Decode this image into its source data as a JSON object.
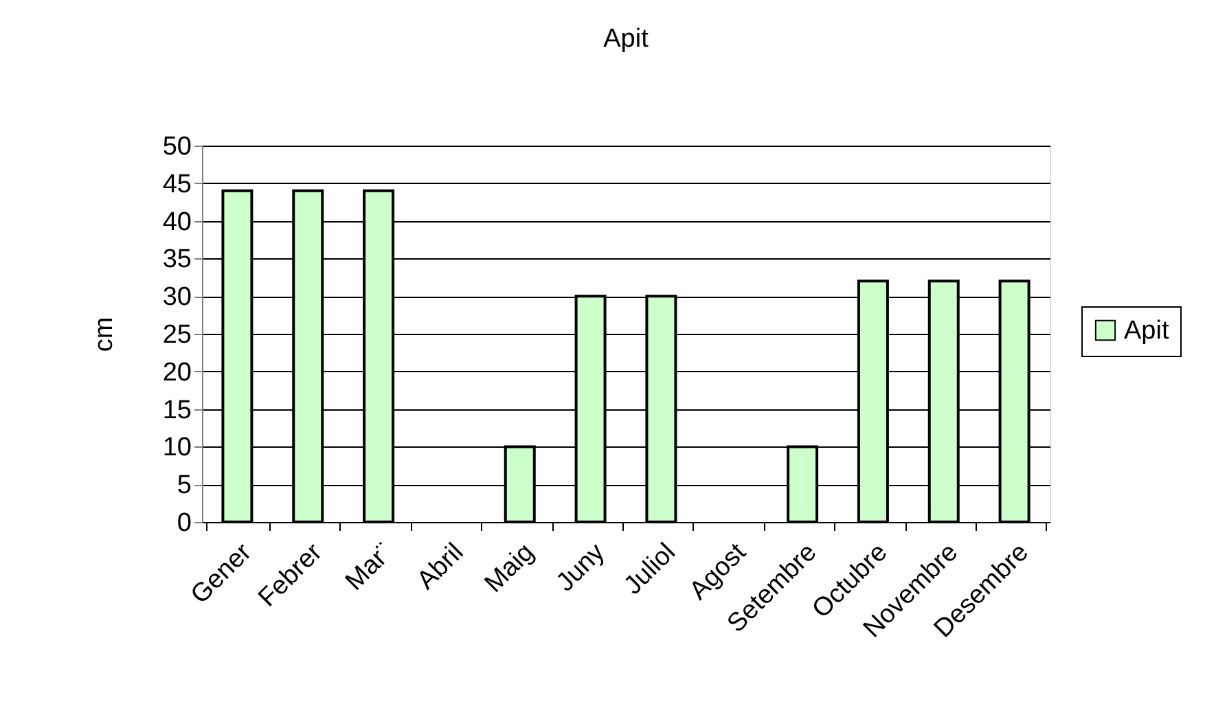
{
  "chart_data": {
    "type": "bar",
    "title": "Apit",
    "ylabel": "cm",
    "categories": [
      "Gener",
      "Febrer",
      "Mar¨",
      "Abril",
      "Maig",
      "Juny",
      "Juliol",
      "Agost",
      "Setembre",
      "Octubre",
      "Novembre",
      "Desembre"
    ],
    "series": [
      {
        "name": "Apit",
        "color": "#ccffcc",
        "values": [
          44,
          44,
          44,
          null,
          10,
          30,
          30,
          null,
          10,
          32,
          32,
          32
        ]
      }
    ],
    "ylim": [
      0,
      50
    ],
    "yticks": [
      0,
      5,
      10,
      15,
      20,
      25,
      30,
      35,
      40,
      45,
      50
    ],
    "grid": "y",
    "legend": "right"
  }
}
